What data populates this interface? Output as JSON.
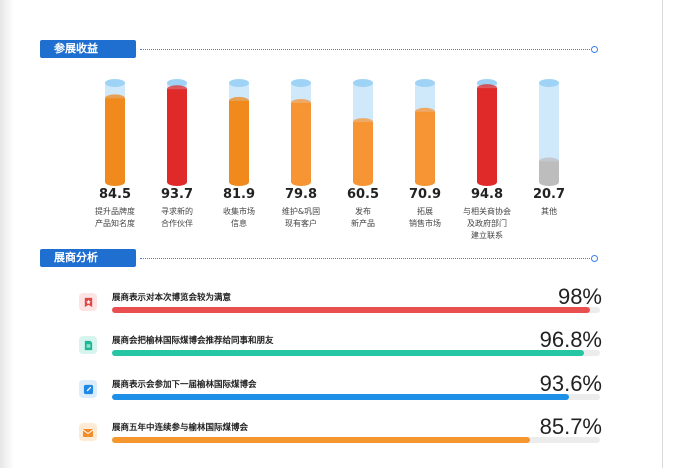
{
  "sections": {
    "income": "参展收益",
    "analysis": "展商分析"
  },
  "chart_data": {
    "type": "bar",
    "categories": [
      [
        "提升品牌度",
        "产品知名度"
      ],
      [
        "寻求新的",
        "合作伙伴"
      ],
      [
        "收集市场",
        "信息"
      ],
      [
        "维护&巩固",
        "现有客户"
      ],
      [
        "发布",
        "新产品"
      ],
      [
        "拓展",
        "销售市场"
      ],
      [
        "与相关商协会",
        "及政府部门",
        "建立联系"
      ],
      [
        "其他"
      ]
    ],
    "values": [
      84.5,
      93.7,
      81.9,
      79.8,
      60.5,
      70.9,
      94.8,
      20.7
    ],
    "colors": [
      "#f08a1c",
      "#e02a2a",
      "#f08a1c",
      "#f79433",
      "#f79433",
      "#f79433",
      "#e02a2a",
      "#bdbdbd"
    ],
    "ylim": [
      0,
      100
    ]
  },
  "analysis_rows": [
    {
      "icon": "star-badge-icon",
      "label": "展商表示对本次博览会较为满意",
      "pct_text": "98%",
      "value": 98,
      "color": "#ea4f4f",
      "icon_bg": "#fde3e3",
      "icon_fg": "#e24444"
    },
    {
      "icon": "document-icon",
      "label": "展商会把榆林国际煤博会推荐给同事和朋友",
      "pct_text": "96.8%",
      "value": 96.8,
      "color": "#26c6a4",
      "icon_bg": "#d7f5ee",
      "icon_fg": "#1fb896"
    },
    {
      "icon": "edit-icon",
      "label": "展商表示会参加下一届榆林国际煤博会",
      "pct_text": "93.6%",
      "value": 93.6,
      "color": "#1e90e8",
      "icon_bg": "#dcecfb",
      "icon_fg": "#1e88e5"
    },
    {
      "icon": "mail-icon",
      "label": "展商五年中连续参与榆林国际煤博会",
      "pct_text": "85.7%",
      "value": 85.7,
      "color": "#f5962e",
      "icon_bg": "#feebd6",
      "icon_fg": "#f28c28"
    }
  ]
}
